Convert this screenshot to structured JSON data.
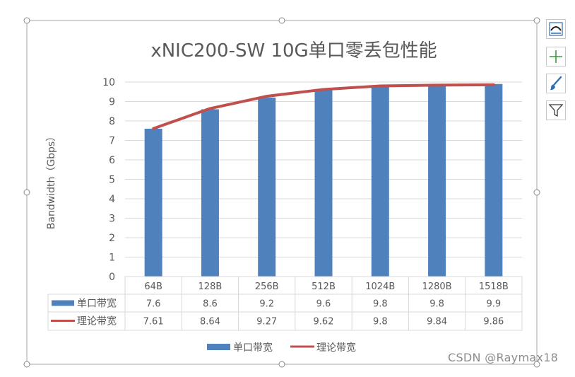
{
  "chart_data": {
    "type": "bar",
    "title": "xNIC200-SW  10G单口零丢包性能",
    "xlabel": "",
    "ylabel": "Bandwidth（Gbps）",
    "ylim": [
      0,
      10
    ],
    "y_ticks": [
      "0",
      "1",
      "2",
      "3",
      "4",
      "5",
      "6",
      "7",
      "8",
      "9",
      "10"
    ],
    "categories": [
      "64B",
      "128B",
      "256B",
      "512B",
      "1024B",
      "1280B",
      "1518B"
    ],
    "series": [
      {
        "name": "单口带宽",
        "kind": "bar",
        "color": "#4f81bd",
        "values": [
          7.6,
          8.6,
          9.2,
          9.6,
          9.8,
          9.8,
          9.9
        ],
        "labels": [
          "7.6",
          "8.6",
          "9.2",
          "9.6",
          "9.8",
          "9.8",
          "9.9"
        ]
      },
      {
        "name": "理论带宽",
        "kind": "line",
        "color": "#c0504d",
        "values": [
          7.61,
          8.64,
          9.27,
          9.62,
          9.8,
          9.84,
          9.86
        ],
        "labels": [
          "7.61",
          "8.64",
          "9.27",
          "9.62",
          "9.8",
          "9.84",
          "9.86"
        ]
      }
    ],
    "grid": true,
    "data_table": true,
    "legend_position": "bottom"
  },
  "toolbar": {
    "items": [
      {
        "name": "chart-elements-button",
        "icon": "chart-elements-icon"
      },
      {
        "name": "add-element-button",
        "icon": "plus-icon"
      },
      {
        "name": "chart-styles-button",
        "icon": "paintbrush-icon"
      },
      {
        "name": "chart-filters-button",
        "icon": "filter-icon"
      }
    ]
  },
  "watermark": "CSDN @Raymax18",
  "colors": {
    "grid": "#d9d9d9",
    "selection": "#a6a6a6",
    "text": "#595959",
    "title": "#595959"
  }
}
